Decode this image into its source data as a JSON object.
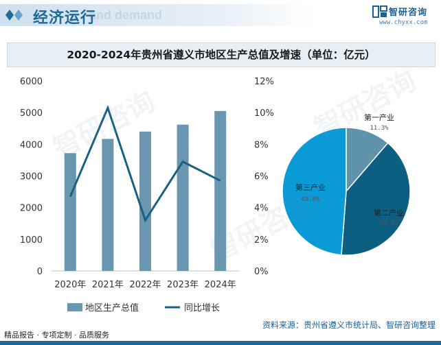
{
  "header": {
    "section_title": "经济运行",
    "ghost_text": "and demand",
    "brand_name": "智研咨询",
    "brand_url": "www.chyxx.com"
  },
  "chart_title": "2020-2024年贵州省遵义市地区生产总值及增速（单位：亿元）",
  "chart_data": [
    {
      "type": "bar",
      "categories": [
        "2020年",
        "2021年",
        "2022年",
        "2023年",
        "2024年"
      ],
      "series": [
        {
          "name": "地区生产总值",
          "type": "bar",
          "axis": "left",
          "values": [
            3720,
            4170,
            4401,
            4620,
            5050
          ],
          "color": "#6a97b0"
        },
        {
          "name": "同比增长",
          "type": "line",
          "axis": "right",
          "values": [
            4.7,
            10.3,
            3.2,
            6.9,
            5.7
          ],
          "color": "#1b5f83"
        }
      ],
      "ylim_left": [
        0,
        6000
      ],
      "yticks_left": [
        "0",
        "1000",
        "2000",
        "3000",
        "4000",
        "5000",
        "6000"
      ],
      "ylim_right": [
        0,
        12
      ],
      "yticks_right": [
        "0%",
        "2%",
        "4%",
        "6%",
        "8%",
        "10%",
        "12%"
      ],
      "legend_position": "bottom",
      "grid": false
    },
    {
      "type": "pie",
      "slices": [
        {
          "name": "第一产业",
          "value": 11.3,
          "label": "11.3%",
          "color": "#5f93ab"
        },
        {
          "name": "第二产业",
          "value": 39.9,
          "label": "39.9%",
          "color": "#0d5f82"
        },
        {
          "name": "第三产业",
          "value": 48.8,
          "label": "48.8%",
          "color": "#0a9ad6"
        }
      ]
    }
  ],
  "legend": {
    "bar_label": "地区生产总值",
    "line_label": "同比增长"
  },
  "footer": {
    "left_text": "精品报告 · 专项定制 · 品质服务",
    "source": "资料来源：贵州省遵义市统计局、智研咨询整理"
  },
  "watermark_text": "智研咨询"
}
